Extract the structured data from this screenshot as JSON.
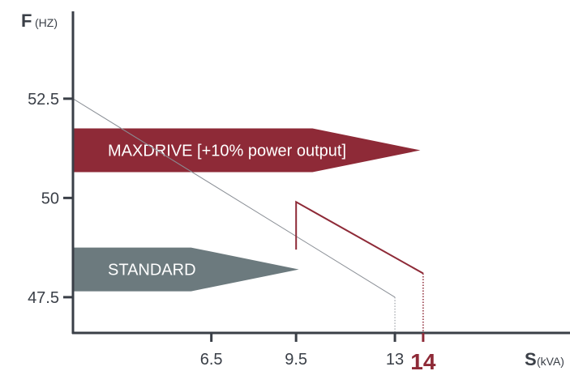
{
  "chart_data": {
    "type": "line",
    "y_axis": {
      "letter": "F",
      "unit": "(HZ)",
      "ticks": [
        "52.5",
        "50",
        "47.5"
      ],
      "range": [
        46.6,
        54.7
      ]
    },
    "x_axis": {
      "letter": "S",
      "unit": "(kVA)",
      "ticks": [
        "6.5",
        "9.5",
        "13"
      ],
      "highlight_tick": "14",
      "range": [
        1.6,
        19.2
      ]
    },
    "series": [
      {
        "points": [
          [
            1.6,
            52.5
          ],
          [
            13,
            47.5
          ]
        ],
        "end_drop_to": 46.6,
        "color": "#8a8f96"
      },
      {
        "points": [
          [
            9.5,
            48.7
          ],
          [
            9.5,
            49.9
          ],
          [
            14,
            48.1
          ]
        ],
        "end_drop_to": 46.6,
        "color": "#8e2a37"
      }
    ],
    "bands": [
      {
        "label": "MAXDRIVE [+10% power output]",
        "y": 51.2,
        "x_end": 13.9,
        "color": "#8e2a37"
      },
      {
        "label": "STANDARD",
        "y": 48.2,
        "x_end": 9.6,
        "color": "#6c7a7e"
      }
    ],
    "grid": false
  }
}
